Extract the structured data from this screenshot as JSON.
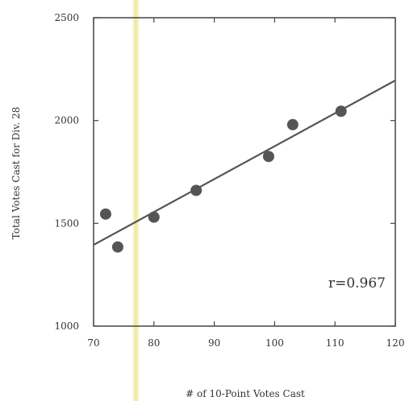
{
  "chart_data": {
    "type": "scatter",
    "title": "",
    "xlabel": "# of 10-Point Votes Cast",
    "ylabel": "Total Votes Cast for Div. 28",
    "xlim": [
      70,
      120
    ],
    "ylim": [
      1000,
      2500
    ],
    "x_ticks": [
      70,
      80,
      90,
      100,
      110,
      120
    ],
    "y_ticks": [
      1000,
      1500,
      2000,
      2500
    ],
    "grid": false,
    "points": [
      {
        "x": 72,
        "y": 1545
      },
      {
        "x": 74,
        "y": 1385
      },
      {
        "x": 80,
        "y": 1530
      },
      {
        "x": 87,
        "y": 1660
      },
      {
        "x": 99,
        "y": 1825
      },
      {
        "x": 103,
        "y": 1980
      },
      {
        "x": 111,
        "y": 2045
      }
    ],
    "fit_line": {
      "x": [
        70,
        120
      ],
      "y": [
        1395,
        2195
      ]
    },
    "highlight_x": 77,
    "annotation": "r=0.967",
    "colors": {
      "points": "#555555",
      "line": "#555555",
      "axes": "#444444",
      "highlight": "#f3eea6"
    }
  }
}
